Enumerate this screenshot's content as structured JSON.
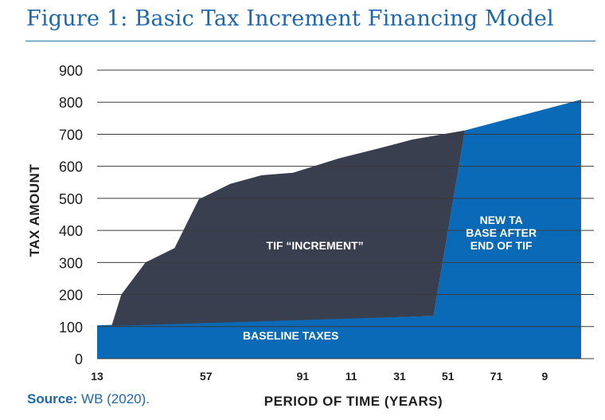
{
  "title": "Figure 1: Basic Tax Increment Financing Model",
  "source": {
    "label": "Source:",
    "text": "WB  (2020)."
  },
  "colors": {
    "title": "#1f67ad",
    "increment": "#3a3f50",
    "baseline": "#0a6ab8",
    "grid": "#3a3a3a",
    "text": "#1e1e1e"
  },
  "chart_data": {
    "type": "area",
    "xlabel": "PERIOD OF TIME (YEARS)",
    "ylabel": "TAX AMOUNT",
    "ylim": [
      0,
      900
    ],
    "yticks": [
      0,
      100,
      200,
      300,
      400,
      500,
      600,
      700,
      800,
      900
    ],
    "xlim": [
      0,
      20
    ],
    "xticks": [
      {
        "x": 0,
        "label": "13"
      },
      {
        "x": 4.5,
        "label": "57"
      },
      {
        "x": 8.5,
        "label": "91"
      },
      {
        "x": 10.5,
        "label": "11"
      },
      {
        "x": 12.5,
        "label": "31"
      },
      {
        "x": 14.5,
        "label": "51"
      },
      {
        "x": 16.5,
        "label": "71"
      },
      {
        "x": 18.5,
        "label": "9"
      }
    ],
    "series": [
      {
        "name": "TIF “INCREMENT”",
        "points": [
          [
            0.6,
            102
          ],
          [
            1.0,
            200
          ],
          [
            2.0,
            300
          ],
          [
            3.2,
            345
          ],
          [
            4.2,
            497
          ],
          [
            5.5,
            545
          ],
          [
            6.8,
            572
          ],
          [
            8.1,
            580
          ],
          [
            10.0,
            625
          ],
          [
            11.6,
            655
          ],
          [
            13.0,
            683
          ],
          [
            15.2,
            712
          ],
          [
            13.9,
            133
          ],
          [
            0.6,
            102
          ]
        ]
      },
      {
        "name": "BASELINE TAXES",
        "points": [
          [
            0,
            0
          ],
          [
            0,
            104
          ],
          [
            13.9,
            133
          ],
          [
            15.2,
            712
          ],
          [
            20,
            808
          ],
          [
            20,
            0
          ]
        ]
      }
    ],
    "annotations": [
      {
        "text": "TIF “INCREMENT”",
        "x": 9.0,
        "y": 340
      },
      {
        "text": "BASELINE TAXES",
        "x": 8.0,
        "y": 60
      },
      {
        "text": "NEW TA",
        "x": 16.7,
        "y": 420
      },
      {
        "text": "BASE AFTER",
        "x": 16.7,
        "y": 380
      },
      {
        "text": "END OF TIF",
        "x": 16.7,
        "y": 340
      }
    ]
  }
}
